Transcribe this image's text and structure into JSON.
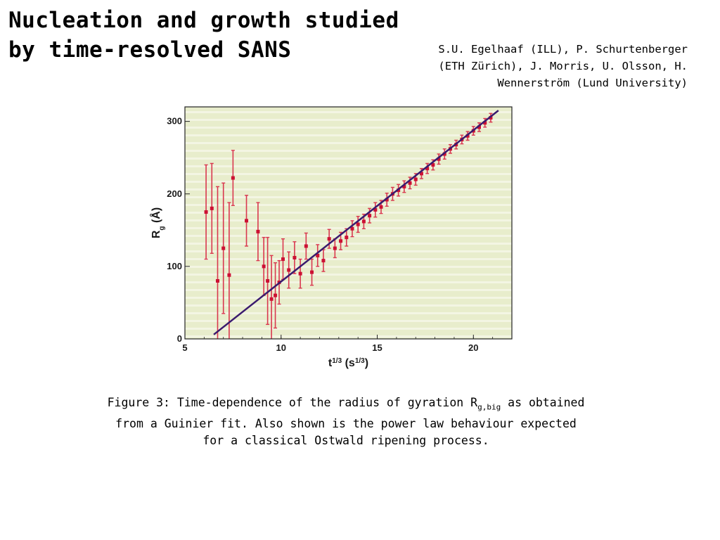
{
  "header": {
    "title_line1": "Nucleation and growth studied",
    "title_line2": "by time-resolved SANS",
    "authors_line1": "S.U. Egelhaaf (ILL), P. Schurtenberger",
    "authors_line2": "(ETH Zürich), J. Morris, U. Olsson, H.",
    "authors_line3": "Wennerström (Lund University)"
  },
  "caption": {
    "part1": "Figure 3: Time-dependence of the radius of gyration R",
    "sub": "g,big",
    "part2": " as obtained",
    "line2": "from a Guinier fit. Also shown is the power law behaviour expected",
    "line3": "for a classical Ostwald ripening process."
  },
  "colors": {
    "plot_bg": "#e8edcc",
    "band": "#f3f5e3",
    "marker": "#cc1133",
    "errorbar": "#d9384f",
    "fit_line": "#3a1a6e"
  },
  "chart_data": {
    "type": "scatter",
    "xlabel_base": "t",
    "xlabel_exp": "1/3",
    "xlabel_unit_base": "s",
    "xlabel_unit_exp": "1/3",
    "ylabel_base": "R",
    "ylabel_sub": "g",
    "ylabel_unit": "(Å)",
    "xlim": [
      5,
      22
    ],
    "ylim": [
      0,
      320
    ],
    "xticks": [
      5,
      10,
      15,
      20
    ],
    "yticks": [
      0,
      100,
      200,
      300
    ],
    "grid": "horizontal bands",
    "fit": {
      "name": "power law",
      "x": [
        6.5,
        21.3
      ],
      "y": [
        6,
        315
      ]
    },
    "series": [
      {
        "x": [
          6.1,
          6.4,
          6.7,
          7.0,
          7.3,
          7.5,
          8.2,
          8.8,
          9.1,
          9.3,
          9.5,
          9.7,
          9.9,
          10.1,
          10.4,
          10.7,
          11.0,
          11.3,
          11.6,
          11.9,
          12.2,
          12.5,
          12.8,
          13.1,
          13.4,
          13.7,
          14.0,
          14.3,
          14.6,
          14.9,
          15.2,
          15.5,
          15.8,
          16.1,
          16.4,
          16.7,
          17.0,
          17.3,
          17.6,
          17.9,
          18.2,
          18.5,
          18.8,
          19.1,
          19.4,
          19.7,
          20.0,
          20.3,
          20.6,
          20.9
        ],
        "y": [
          175,
          180,
          80,
          125,
          88,
          222,
          163,
          148,
          100,
          80,
          55,
          60,
          78,
          110,
          95,
          112,
          90,
          128,
          92,
          115,
          108,
          138,
          125,
          135,
          140,
          152,
          158,
          162,
          170,
          178,
          182,
          192,
          200,
          205,
          210,
          215,
          220,
          228,
          235,
          240,
          248,
          255,
          262,
          268,
          275,
          280,
          287,
          292,
          298,
          305
        ],
        "err": [
          65,
          62,
          130,
          90,
          100,
          38,
          35,
          40,
          40,
          60,
          60,
          45,
          30,
          28,
          25,
          22,
          20,
          18,
          18,
          15,
          15,
          13,
          13,
          12,
          12,
          11,
          11,
          10,
          10,
          10,
          9,
          9,
          9,
          8,
          8,
          8,
          8,
          7,
          7,
          7,
          7,
          7,
          6,
          6,
          6,
          6,
          6,
          6,
          6,
          6
        ]
      }
    ]
  }
}
